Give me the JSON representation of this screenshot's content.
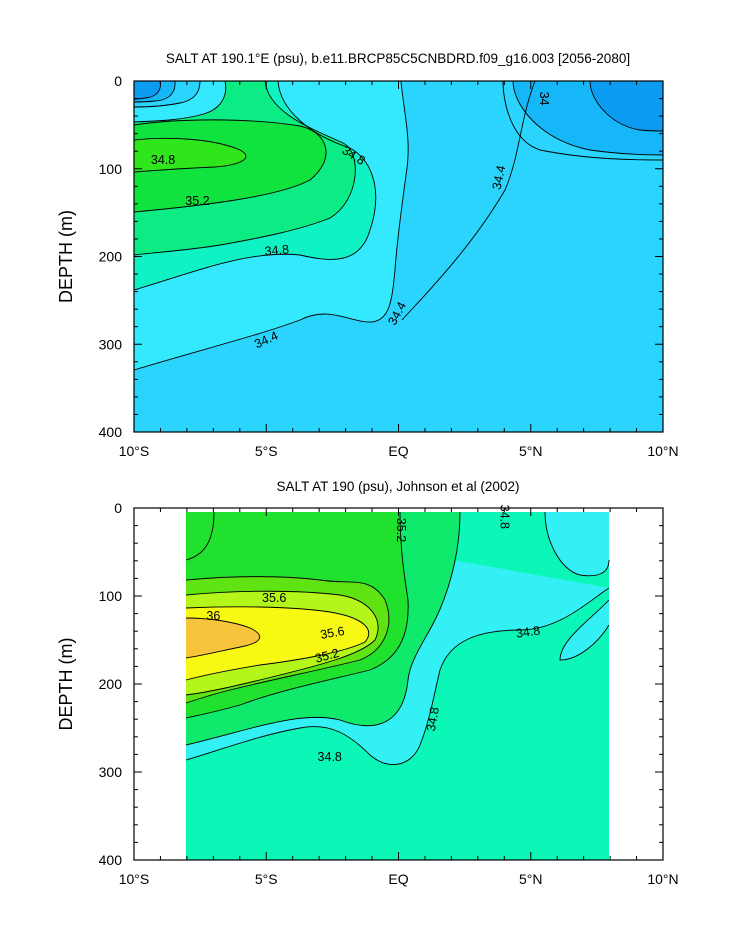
{
  "chart_data": [
    {
      "type": "contour",
      "title": "SALT AT 190.1°E (psu), b.e11.BRCP85C5CNBDRD.f09_g16.003 [2056-2080]",
      "xlabel": "",
      "ylabel": "DEPTH (m)",
      "xlim": [
        -10,
        10
      ],
      "ylim": [
        0,
        400
      ],
      "y_inverted": true,
      "x_ticks": [
        -10,
        -5,
        0,
        5,
        10
      ],
      "x_tick_labels": [
        "10°S",
        "5°S",
        "EQ",
        "5°N",
        "10°N"
      ],
      "y_ticks": [
        0,
        100,
        200,
        300,
        400
      ],
      "y_tick_labels": [
        "0",
        "100",
        "200",
        "300",
        "400"
      ],
      "contour_interval": 0.2,
      "colors": {
        "34.0": "#0b9bf0",
        "34.2": "#16b7f8",
        "34.4": "#2ad4fc",
        "34.6": "#34e9fd",
        "34.8": "#0ff2c4",
        "35.0": "#0cec84",
        "35.2": "#10e23e",
        "35.4": "#2ee61b"
      },
      "contour_labels": [
        {
          "value": "34",
          "x": 5.5,
          "y": 20,
          "angle": 90
        },
        {
          "value": "34.8",
          "x": -8.9,
          "y": 90,
          "angle": 0
        },
        {
          "value": "34.8",
          "x": -1.7,
          "y": 85,
          "angle": 32
        },
        {
          "value": "34.4",
          "x": 3.8,
          "y": 110,
          "angle": -78
        },
        {
          "value": "35.2",
          "x": -7.6,
          "y": 137,
          "angle": 0
        },
        {
          "value": "34.8",
          "x": -4.6,
          "y": 193,
          "angle": -5
        },
        {
          "value": "34.4",
          "x": -0.05,
          "y": 265,
          "angle": -62
        },
        {
          "value": "34.4",
          "x": -5.0,
          "y": 295,
          "angle": -24
        }
      ]
    },
    {
      "type": "contour",
      "title": "SALT AT 190 (psu), Johnson et al (2002)",
      "xlabel": "",
      "ylabel": "DEPTH (m)",
      "xlim": [
        -10,
        10
      ],
      "ylim": [
        0,
        400
      ],
      "y_inverted": true,
      "data_xlim": [
        -8,
        8
      ],
      "x_ticks": [
        -10,
        -5,
        0,
        5,
        10
      ],
      "x_tick_labels": [
        "10°S",
        "5°S",
        "EQ",
        "5°N",
        "10°N"
      ],
      "y_ticks": [
        0,
        100,
        200,
        300,
        400
      ],
      "y_tick_labels": [
        "0",
        "100",
        "200",
        "300",
        "400"
      ],
      "contour_interval": 0.2,
      "colors": {
        "34.6": "#33f0f5",
        "34.8": "#0bf7b8",
        "35.0": "#0fea6d",
        "35.2": "#20e12e",
        "35.4": "#60e313",
        "35.6": "#b4f51a",
        "35.8": "#f7f913",
        "36.0": "#f8c43c"
      },
      "contour_labels": [
        {
          "value": "34.8",
          "x": 4.0,
          "y": 10,
          "angle": 90
        },
        {
          "value": "35.2",
          "x": 0.1,
          "y": 25,
          "angle": 90
        },
        {
          "value": "35.6",
          "x": -4.7,
          "y": 102,
          "angle": 0
        },
        {
          "value": "36",
          "x": -7.0,
          "y": 123,
          "angle": 0
        },
        {
          "value": "35.6",
          "x": -2.5,
          "y": 142,
          "angle": -10
        },
        {
          "value": "35.2",
          "x": -2.7,
          "y": 168,
          "angle": -15
        },
        {
          "value": "34.8",
          "x": 4.9,
          "y": 141,
          "angle": -8
        },
        {
          "value": "34.8",
          "x": 1.3,
          "y": 240,
          "angle": -80
        },
        {
          "value": "34.8",
          "x": -2.6,
          "y": 283,
          "angle": 0
        }
      ]
    }
  ]
}
